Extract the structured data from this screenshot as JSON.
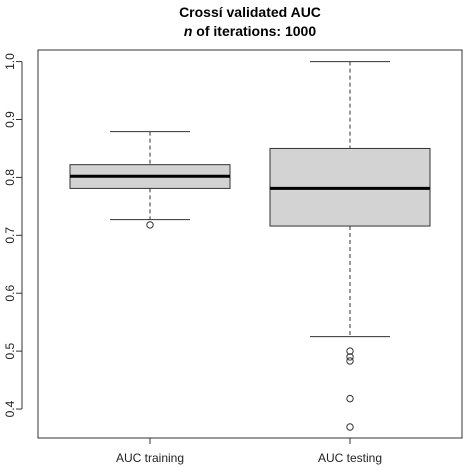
{
  "chart_data": {
    "type": "boxplot",
    "title_prefix": "Crossí validated AUC",
    "title_n": "n",
    "title_suffix": " of iterations: 1000",
    "ylim": [
      0.35,
      1.02
    ],
    "yticks": [
      0.4,
      0.5,
      0.6,
      0.7,
      0.8,
      0.9,
      1.0
    ],
    "ytick_labels": [
      "0.4",
      "0.5",
      "0.6",
      "0.7",
      "0.8",
      "0.9",
      "1.0"
    ],
    "grid": false,
    "series": [
      {
        "name": "AUC training",
        "whisker_low": 0.727,
        "q1": 0.781,
        "median": 0.802,
        "q3": 0.822,
        "whisker_high": 0.879,
        "outliers": [
          0.718
        ]
      },
      {
        "name": "AUC testing",
        "whisker_low": 0.525,
        "q1": 0.716,
        "median": 0.781,
        "q3": 0.85,
        "whisker_high": 1.0,
        "outliers": [
          0.5,
          0.49,
          0.483,
          0.418,
          0.369
        ]
      }
    ]
  }
}
